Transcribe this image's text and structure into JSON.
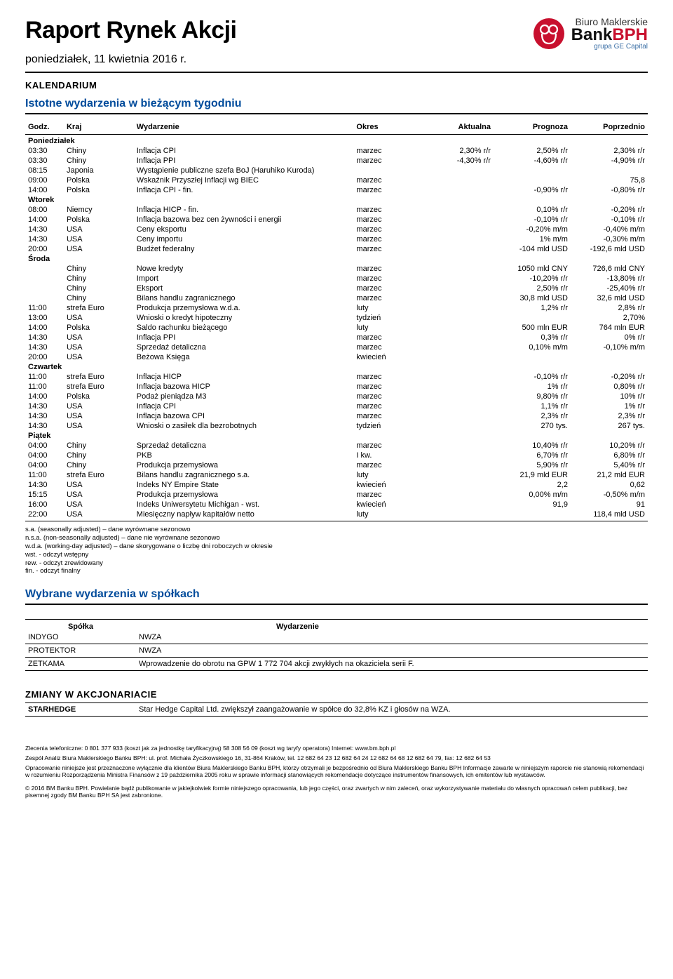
{
  "header": {
    "title": "Raport Rynek Akcji",
    "subtitle": "poniedziałek, 11 kwietnia 2016 r.",
    "logo": {
      "line1": "Biuro Maklerskie",
      "line2a": "Bank",
      "line2b": "BPH",
      "line3": "grupa GE Capital",
      "circle_color": "#c8102e"
    }
  },
  "sections": {
    "kalendarium": "KALENDARIUM",
    "istotne": "Istotne wydarzenia w bieżącym tygodniu",
    "wybrane": "Wybrane wydarzenia w spółkach",
    "zmiany": "ZMIANY W AKCJONARIACIE"
  },
  "calendar": {
    "columns": [
      "Godz.",
      "Kraj",
      "Wydarzenie",
      "Okres",
      "Aktualna",
      "Prognoza",
      "Poprzednio"
    ],
    "days": [
      {
        "label": "Poniedziałek",
        "rows": [
          [
            "03:30",
            "Chiny",
            "Inflacja CPI",
            "marzec",
            "2,30% r/r",
            "2,50% r/r",
            "2,30% r/r"
          ],
          [
            "03:30",
            "Chiny",
            "Inflacja PPI",
            "marzec",
            "-4,30% r/r",
            "-4,60% r/r",
            "-4,90% r/r"
          ],
          [
            "08:15",
            "Japonia",
            "Wystąpienie publiczne szefa BoJ (Haruhiko Kuroda)",
            "",
            "",
            "",
            ""
          ],
          [
            "09:00",
            "Polska",
            "Wskaźnik Przyszłej Inflacji wg BIEC",
            "marzec",
            "",
            "",
            "75,8"
          ],
          [
            "14:00",
            "Polska",
            "Inflacja CPI - fin.",
            "marzec",
            "",
            "-0,90% r/r",
            "-0,80% r/r"
          ]
        ]
      },
      {
        "label": "Wtorek",
        "rows": [
          [
            "08:00",
            "Niemcy",
            "Inflacja HICP - fin.",
            "marzec",
            "",
            "0,10% r/r",
            "-0,20% r/r"
          ],
          [
            "14:00",
            "Polska",
            "Inflacja bazowa bez cen żywności i energii",
            "marzec",
            "",
            "-0,10% r/r",
            "-0,10% r/r"
          ],
          [
            "14:30",
            "USA",
            "Ceny eksportu",
            "marzec",
            "",
            "-0,20% m/m",
            "-0,40% m/m"
          ],
          [
            "14:30",
            "USA",
            "Ceny importu",
            "marzec",
            "",
            "1% m/m",
            "-0,30% m/m"
          ],
          [
            "20:00",
            "USA",
            "Budżet federalny",
            "marzec",
            "",
            "-104 mld USD",
            "-192,6 mld USD"
          ]
        ]
      },
      {
        "label": "Środa",
        "rows": [
          [
            "",
            "Chiny",
            "Nowe kredyty",
            "marzec",
            "",
            "1050 mld CNY",
            "726,6 mld CNY"
          ],
          [
            "",
            "Chiny",
            "Import",
            "marzec",
            "",
            "-10,20% r/r",
            "-13,80% r/r"
          ],
          [
            "",
            "Chiny",
            "Eksport",
            "marzec",
            "",
            "2,50% r/r",
            "-25,40% r/r"
          ],
          [
            "",
            "Chiny",
            "Bilans handlu zagranicznego",
            "marzec",
            "",
            "30,8 mld USD",
            "32,6 mld USD"
          ],
          [
            "11:00",
            "strefa Euro",
            "Produkcja przemysłowa w.d.a.",
            "luty",
            "",
            "1,2% r/r",
            "2,8% r/r"
          ],
          [
            "13:00",
            "USA",
            "Wnioski o kredyt hipoteczny",
            "tydzień",
            "",
            "",
            "2,70%"
          ],
          [
            "14:00",
            "Polska",
            "Saldo rachunku bieżącego",
            "luty",
            "",
            "500 mln EUR",
            "764 mln EUR"
          ],
          [
            "14:30",
            "USA",
            "Inflacja PPI",
            "marzec",
            "",
            "0,3% r/r",
            "0% r/r"
          ],
          [
            "14:30",
            "USA",
            "Sprzedaż detaliczna",
            "marzec",
            "",
            "0,10% m/m",
            "-0,10% m/m"
          ],
          [
            "20:00",
            "USA",
            "Beżowa Księga",
            "kwiecień",
            "",
            "",
            ""
          ]
        ]
      },
      {
        "label": "Czwartek",
        "rows": [
          [
            "11:00",
            "strefa Euro",
            "Inflacja HICP",
            "marzec",
            "",
            "-0,10% r/r",
            "-0,20% r/r"
          ],
          [
            "11:00",
            "strefa Euro",
            "Inflacja bazowa HICP",
            "marzec",
            "",
            "1% r/r",
            "0,80% r/r"
          ],
          [
            "14:00",
            "Polska",
            "Podaż pieniądza M3",
            "marzec",
            "",
            "9,80% r/r",
            "10% r/r"
          ],
          [
            "14:30",
            "USA",
            "Inflacja CPI",
            "marzec",
            "",
            "1,1% r/r",
            "1% r/r"
          ],
          [
            "14:30",
            "USA",
            "Inflacja bazowa CPI",
            "marzec",
            "",
            "2,3% r/r",
            "2,3% r/r"
          ],
          [
            "14:30",
            "USA",
            "Wnioski o zasiłek dla bezrobotnych",
            "tydzień",
            "",
            "270 tys.",
            "267 tys."
          ]
        ]
      },
      {
        "label": "Piątek",
        "rows": [
          [
            "04:00",
            "Chiny",
            "Sprzedaż detaliczna",
            "marzec",
            "",
            "10,40% r/r",
            "10,20% r/r"
          ],
          [
            "04:00",
            "Chiny",
            "PKB",
            "I kw.",
            "",
            "6,70% r/r",
            "6,80% r/r"
          ],
          [
            "04:00",
            "Chiny",
            "Produkcja przemysłowa",
            "marzec",
            "",
            "5,90% r/r",
            "5,40% r/r"
          ],
          [
            "11:00",
            "strefa Euro",
            "Bilans handlu zagranicznego s.a.",
            "luty",
            "",
            "21,9 mld EUR",
            "21,2 mld EUR"
          ],
          [
            "14:30",
            "USA",
            "Indeks NY Empire State",
            "kwiecień",
            "",
            "2,2",
            "0,62"
          ],
          [
            "15:15",
            "USA",
            "Produkcja przemysłowa",
            "marzec",
            "",
            "0,00% m/m",
            "-0,50% m/m"
          ],
          [
            "16:00",
            "USA",
            "Indeks Uniwersytetu Michigan - wst.",
            "kwiecień",
            "",
            "91,9",
            "91"
          ],
          [
            "22:00",
            "USA",
            "Miesięczny napływ kapitałów netto",
            "luty",
            "",
            "",
            "118,4 mld USD"
          ]
        ]
      }
    ]
  },
  "footnotes": [
    "s.a. (seasonally adjusted) – dane wyrównane sezonowo",
    "n.s.a. (non-seasonally adjusted) – dane nie wyrównane sezonowo",
    "w.d.a. (working-day adjusted) – dane skorygowane o liczbę dni roboczych w okresie",
    "wst. - odczyt wstępny",
    "rew. - odczyt zrewidowany",
    "fin. - odczyt finalny"
  ],
  "companies": {
    "columns": [
      "Spółka",
      "Wydarzenie"
    ],
    "rows": [
      [
        "INDYGO",
        "NWZA"
      ],
      [
        "PROTEKTOR",
        "NWZA"
      ],
      [
        "ZETKAMA",
        "Wprowadzenie do obrotu na GPW 1  772 704 akcji zwykłych na okaziciela serii F."
      ]
    ]
  },
  "shareholders": {
    "rows": [
      [
        "STARHEDGE",
        "Star Hedge Capital Ltd. zwiększył zaangażowanie w spółce do 32,8% KZ i głosów na WZA."
      ]
    ]
  },
  "footer": {
    "line1": "Zlecenia telefoniczne: 0  801  377  933 (koszt jak za jednostkę taryfikacyjną)   58 308 56 09 (koszt wg taryfy operatora)   Internet: www.bm.bph.pl",
    "line2": "Zespół Analiz Biura Maklerskiego Banku BPH: ul. prof. Michała Życzkowskiego 16, 31-864 Kraków,  tel. 12 682 64 23  12 682 64 24  12 682 64 68  12 682 64 79,  fax: 12  682 64 53",
    "line3": "Opracowanie niniejsze jest przeznaczone wyłącznie dla klientów Biura Maklerskiego Banku BPH, którzy otrzymali je bezpośrednio od Biura Maklerskiego Banku BPH Informacje zawarte w niniejszym raporcie nie stanowią rekomendacji w rozumieniu Rozporządzenia Ministra Finansów z 19 października 2005 roku w sprawie informacji stanowiących rekomendacje dotyczące instrumentów finansowych, ich emitentów lub wystawców.",
    "line4": "© 2016 BM Banku BPH. Powielanie bądź publikowanie w jakiejkolwiek formie niniejszego opracowania, lub jego części, oraz zwartych w nim zaleceń, oraz wykorzystywanie materiału do własnych opracowań celem publikacji, bez pisemnej zgody BM Banku BPH SA jest zabronione."
  }
}
